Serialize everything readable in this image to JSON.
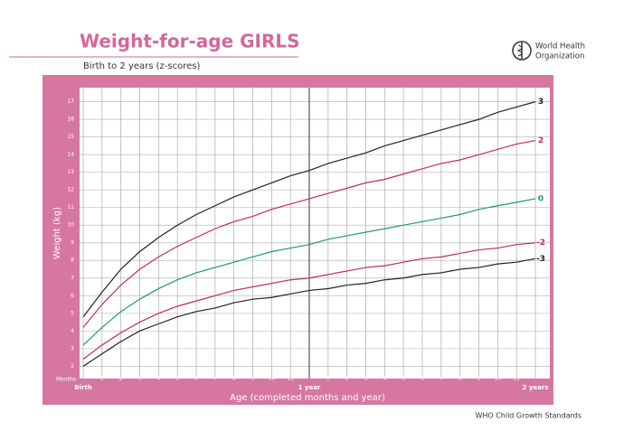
{
  "chart_data": {
    "type": "line",
    "title": "Weight-for-age GIRLS",
    "subtitle": "Birth to 2 years (z-scores)",
    "organization": [
      "World Health",
      "Organization"
    ],
    "xlabel": "Age (completed months and year)",
    "x_unit_label": "Months",
    "ylabel": "Weight (kg)",
    "footer": "WHO Child Growth Standards",
    "x": [
      0,
      1,
      2,
      3,
      4,
      5,
      6,
      7,
      8,
      9,
      10,
      11,
      12,
      13,
      14,
      15,
      16,
      17,
      18,
      19,
      20,
      21,
      22,
      23,
      24
    ],
    "xlim": [
      0,
      24
    ],
    "xticks": [
      {
        "value": 0,
        "label": "Birth"
      },
      1,
      2,
      3,
      4,
      5,
      6,
      7,
      8,
      9,
      10,
      11,
      {
        "value": 12,
        "label": "1 year"
      },
      {
        "value": 13,
        "label": "1"
      },
      {
        "value": 14,
        "label": "2"
      },
      {
        "value": 15,
        "label": "3"
      },
      {
        "value": 16,
        "label": "4"
      },
      {
        "value": 17,
        "label": "5"
      },
      {
        "value": 18,
        "label": "6"
      },
      {
        "value": 19,
        "label": "7"
      },
      {
        "value": 20,
        "label": "8"
      },
      {
        "value": 21,
        "label": "9"
      },
      {
        "value": 22,
        "label": "10"
      },
      {
        "value": 23,
        "label": "11"
      },
      {
        "value": 24,
        "label": "2 years"
      }
    ],
    "ylim": [
      1.3,
      17.8
    ],
    "yticks": [
      2,
      3,
      4,
      5,
      6,
      7,
      8,
      9,
      10,
      11,
      12,
      13,
      14,
      15,
      16,
      17
    ],
    "grid": true,
    "series": [
      {
        "name": "3",
        "color": "#222222",
        "values": [
          4.8,
          6.2,
          7.5,
          8.5,
          9.3,
          10.0,
          10.6,
          11.1,
          11.6,
          12.0,
          12.4,
          12.8,
          13.1,
          13.5,
          13.8,
          14.1,
          14.5,
          14.8,
          15.1,
          15.4,
          15.7,
          16.0,
          16.4,
          16.7,
          17.0
        ]
      },
      {
        "name": "2",
        "color": "#c0304a",
        "values": [
          4.2,
          5.5,
          6.6,
          7.5,
          8.2,
          8.8,
          9.3,
          9.8,
          10.2,
          10.5,
          10.9,
          11.2,
          11.5,
          11.8,
          12.1,
          12.4,
          12.6,
          12.9,
          13.2,
          13.5,
          13.7,
          14.0,
          14.3,
          14.6,
          14.8
        ]
      },
      {
        "name": "0",
        "color": "#1f9a6a",
        "values": [
          3.2,
          4.2,
          5.1,
          5.8,
          6.4,
          6.9,
          7.3,
          7.6,
          7.9,
          8.2,
          8.5,
          8.7,
          8.9,
          9.2,
          9.4,
          9.6,
          9.8,
          10.0,
          10.2,
          10.4,
          10.6,
          10.9,
          11.1,
          11.3,
          11.5
        ]
      },
      {
        "name": "-2",
        "color": "#c0304a",
        "values": [
          2.4,
          3.2,
          3.9,
          4.5,
          5.0,
          5.4,
          5.7,
          6.0,
          6.3,
          6.5,
          6.7,
          6.9,
          7.0,
          7.2,
          7.4,
          7.6,
          7.7,
          7.9,
          8.1,
          8.2,
          8.4,
          8.6,
          8.7,
          8.9,
          9.0
        ]
      },
      {
        "name": "-3",
        "color": "#222222",
        "values": [
          2.0,
          2.7,
          3.4,
          4.0,
          4.4,
          4.8,
          5.1,
          5.3,
          5.6,
          5.8,
          5.9,
          6.1,
          6.3,
          6.4,
          6.6,
          6.7,
          6.9,
          7.0,
          7.2,
          7.3,
          7.5,
          7.6,
          7.8,
          7.9,
          8.1
        ]
      }
    ]
  }
}
